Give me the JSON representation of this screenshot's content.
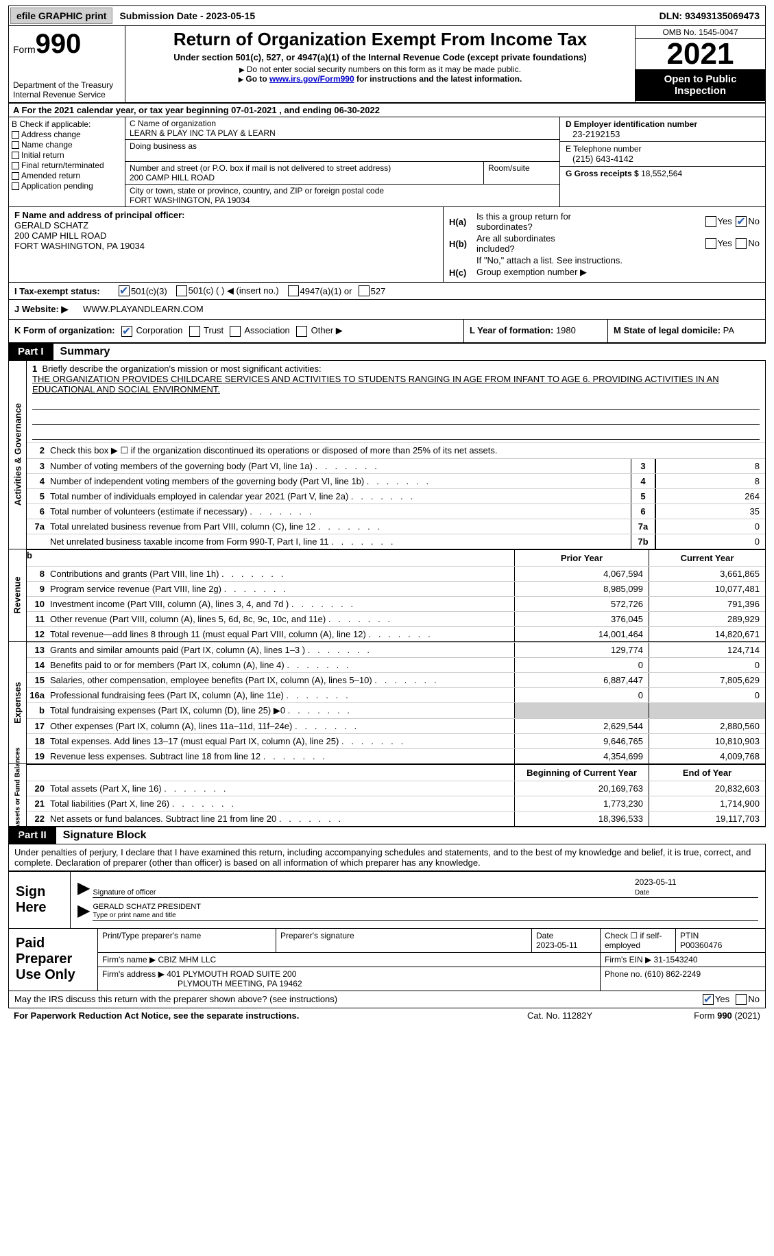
{
  "topbar": {
    "efile_btn": "efile GRAPHIC print",
    "sub_date_label": "Submission Date - ",
    "sub_date": "2023-05-15",
    "dln_label": "DLN: ",
    "dln": "93493135069473"
  },
  "header": {
    "form_label": "Form",
    "form_num": "990",
    "dept": "Department of the Treasury",
    "irs": "Internal Revenue Service",
    "title": "Return of Organization Exempt From Income Tax",
    "sub1": "Under section 501(c), 527, or 4947(a)(1) of the Internal Revenue Code (except private foundations)",
    "sub2": "Do not enter social security numbers on this form as it may be made public.",
    "sub3_pre": "Go to ",
    "sub3_link": "www.irs.gov/Form990",
    "sub3_post": " for instructions and the latest information.",
    "omb": "OMB No. 1545-0047",
    "year": "2021",
    "open": "Open to Public Inspection"
  },
  "lineA": {
    "pre": "A For the 2021 calendar year, or tax year beginning ",
    "begin": "07-01-2021",
    "mid": " , and ending ",
    "end": "06-30-2022"
  },
  "colB": {
    "label": "B Check if applicable:",
    "items": [
      "Address change",
      "Name change",
      "Initial return",
      "Final return/terminated",
      "Amended return",
      "Application pending"
    ]
  },
  "colC": {
    "name_label": "C Name of organization",
    "name": "LEARN & PLAY INC TA PLAY & LEARN",
    "dba_label": "Doing business as",
    "addr_label": "Number and street (or P.O. box if mail is not delivered to street address)",
    "room_label": "Room/suite",
    "addr": "200 CAMP HILL ROAD",
    "city_label": "City or town, state or province, country, and ZIP or foreign postal code",
    "city": "FORT WASHINGTON, PA  19034"
  },
  "colD": {
    "d_label": "D Employer identification number",
    "d_val": "23-2192153",
    "e_label": "E Telephone number",
    "e_val": "(215) 643-4142",
    "g_label": "G Gross receipts $ ",
    "g_val": "18,552,564"
  },
  "rowF": {
    "label": "F Name and address of principal officer:",
    "name": "GERALD SCHATZ",
    "addr1": "200 CAMP HILL ROAD",
    "addr2": "FORT WASHINGTON, PA  19034"
  },
  "rowH": {
    "a_lbl": "H(a)",
    "a_txt1": "Is this a group return for",
    "a_txt2": "subordinates?",
    "b_lbl": "H(b)",
    "b_txt1": "Are all subordinates",
    "b_txt2": "included?",
    "note": "If \"No,\" attach a list. See instructions.",
    "c_lbl": "H(c)",
    "c_txt": "Group exemption number ▶",
    "yes": "Yes",
    "no": "No"
  },
  "rowI": {
    "label": "I     Tax-exempt status:",
    "o1": "501(c)(3)",
    "o2": "501(c) (   ) ◀ (insert no.)",
    "o3": "4947(a)(1) or",
    "o4": "527"
  },
  "rowJ": {
    "label": "J    Website: ▶",
    "val": " WWW.PLAYANDLEARN.COM"
  },
  "rowK": {
    "label": "K Form of organization:",
    "o1": "Corporation",
    "o2": "Trust",
    "o3": "Association",
    "o4": "Other ▶"
  },
  "rowL": {
    "label": "L Year of formation: ",
    "val": "1980"
  },
  "rowM": {
    "label": "M State of legal domicile: ",
    "val": "PA"
  },
  "parts": {
    "p1_tag": "Part I",
    "p1_title": "Summary",
    "p2_tag": "Part II",
    "p2_title": "Signature Block"
  },
  "mission": {
    "label": "Briefly describe the organization's mission or most significant activities:",
    "text": "THE ORGANIZATION PROVIDES CHILDCARE SERVICES AND ACTIVITIES TO STUDENTS RANGING IN AGE FROM INFANT TO AGE 6. PROVIDING ACTIVITIES IN AN EDUCATIONAL AND SOCIAL ENVIRONMENT."
  },
  "line2": "Check this box ▶ ☐ if the organization discontinued its operations or disposed of more than 25% of its net assets.",
  "side_labels": {
    "ag": "Activities & Governance",
    "rev": "Revenue",
    "exp": "Expenses",
    "na": "Net Assets or\nFund Balances"
  },
  "cols": {
    "prior": "Prior Year",
    "current": "Current Year",
    "boy": "Beginning of Current Year",
    "eoy": "End of Year"
  },
  "governance": [
    {
      "n": "3",
      "d": "Number of voting members of the governing body (Part VI, line 1a)",
      "b": "3",
      "v": "8"
    },
    {
      "n": "4",
      "d": "Number of independent voting members of the governing body (Part VI, line 1b)",
      "b": "4",
      "v": "8"
    },
    {
      "n": "5",
      "d": "Total number of individuals employed in calendar year 2021 (Part V, line 2a)",
      "b": "5",
      "v": "264"
    },
    {
      "n": "6",
      "d": "Total number of volunteers (estimate if necessary)",
      "b": "6",
      "v": "35"
    },
    {
      "n": "7a",
      "d": "Total unrelated business revenue from Part VIII, column (C), line 12",
      "b": "7a",
      "v": "0"
    },
    {
      "n": "",
      "d": "Net unrelated business taxable income from Form 990-T, Part I, line 11",
      "b": "7b",
      "v": "0"
    }
  ],
  "revenue": [
    {
      "n": "8",
      "d": "Contributions and grants (Part VIII, line 1h)",
      "p": "4,067,594",
      "c": "3,661,865"
    },
    {
      "n": "9",
      "d": "Program service revenue (Part VIII, line 2g)",
      "p": "8,985,099",
      "c": "10,077,481"
    },
    {
      "n": "10",
      "d": "Investment income (Part VIII, column (A), lines 3, 4, and 7d )",
      "p": "572,726",
      "c": "791,396"
    },
    {
      "n": "11",
      "d": "Other revenue (Part VIII, column (A), lines 5, 6d, 8c, 9c, 10c, and 11e)",
      "p": "376,045",
      "c": "289,929"
    },
    {
      "n": "12",
      "d": "Total revenue—add lines 8 through 11 (must equal Part VIII, column (A), line 12)",
      "p": "14,001,464",
      "c": "14,820,671"
    }
  ],
  "expenses": [
    {
      "n": "13",
      "d": "Grants and similar amounts paid (Part IX, column (A), lines 1–3 )",
      "p": "129,774",
      "c": "124,714"
    },
    {
      "n": "14",
      "d": "Benefits paid to or for members (Part IX, column (A), line 4)",
      "p": "0",
      "c": "0"
    },
    {
      "n": "15",
      "d": "Salaries, other compensation, employee benefits (Part IX, column (A), lines 5–10)",
      "p": "6,887,447",
      "c": "7,805,629"
    },
    {
      "n": "16a",
      "d": "Professional fundraising fees (Part IX, column (A), line 11e)",
      "p": "0",
      "c": "0"
    },
    {
      "n": "b",
      "d": "Total fundraising expenses (Part IX, column (D), line 25) ▶0",
      "p": "",
      "c": "",
      "gray": true
    },
    {
      "n": "17",
      "d": "Other expenses (Part IX, column (A), lines 11a–11d, 11f–24e)",
      "p": "2,629,544",
      "c": "2,880,560"
    },
    {
      "n": "18",
      "d": "Total expenses. Add lines 13–17 (must equal Part IX, column (A), line 25)",
      "p": "9,646,765",
      "c": "10,810,903"
    },
    {
      "n": "19",
      "d": "Revenue less expenses. Subtract line 18 from line 12",
      "p": "4,354,699",
      "c": "4,009,768"
    }
  ],
  "netassets": [
    {
      "n": "20",
      "d": "Total assets (Part X, line 16)",
      "p": "20,169,763",
      "c": "20,832,603"
    },
    {
      "n": "21",
      "d": "Total liabilities (Part X, line 26)",
      "p": "1,773,230",
      "c": "1,714,900"
    },
    {
      "n": "22",
      "d": "Net assets or fund balances. Subtract line 21 from line 20",
      "p": "18,396,533",
      "c": "19,117,703"
    }
  ],
  "part2_text": "Under penalties of perjury, I declare that I have examined this return, including accompanying schedules and statements, and to the best of my knowledge and belief, it is true, correct, and complete. Declaration of preparer (other than officer) is based on all information of which preparer has any knowledge.",
  "sign": {
    "label": "Sign Here",
    "sig_of_officer": "Signature of officer",
    "date": "2023-05-11",
    "date_lbl": "Date",
    "name": "GERALD SCHATZ  PRESIDENT",
    "name_lbl": "Type or print name and title"
  },
  "prep": {
    "label": "Paid Preparer Use Only",
    "r1_c1": "Print/Type preparer's name",
    "r1_c2": "Preparer's signature",
    "r1_c3_lbl": "Date",
    "r1_c3_val": "2023-05-11",
    "r1_c4_lbl": "Check ☐ if self-employed",
    "r1_c5_lbl": "PTIN",
    "r1_c5_val": "P00360476",
    "r2_lbl": "Firm's name    ▶",
    "r2_val": "CBIZ MHM LLC",
    "r2_ein_lbl": "Firm's EIN ▶ ",
    "r2_ein_val": "31-1543240",
    "r3_lbl": "Firm's address ▶",
    "r3_val1": "401 PLYMOUTH ROAD SUITE 200",
    "r3_val2": "PLYMOUTH MEETING, PA  19462",
    "r3_ph_lbl": "Phone no. ",
    "r3_ph_val": "(610) 862-2249"
  },
  "discuss": {
    "text": "May the IRS discuss this return with the preparer shown above? (see instructions)",
    "yes": "Yes",
    "no": "No"
  },
  "footer": {
    "l": "For Paperwork Reduction Act Notice, see the separate instructions.",
    "m": "Cat. No. 11282Y",
    "r": "Form 990 (2021)"
  }
}
